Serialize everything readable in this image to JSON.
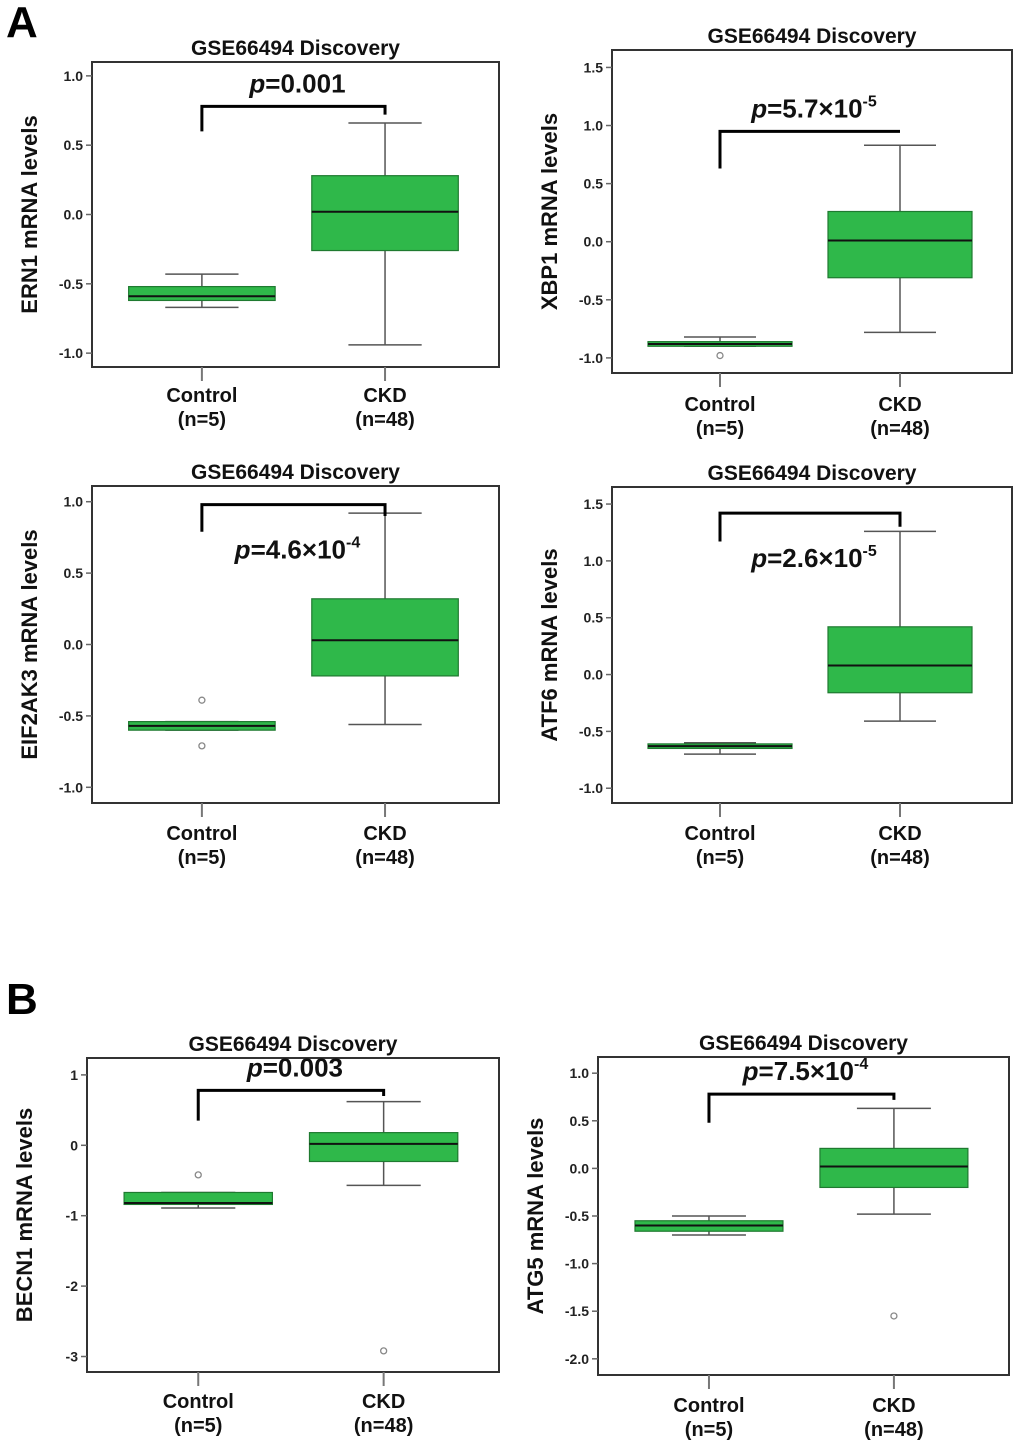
{
  "sections": [
    {
      "letter": "A"
    },
    {
      "letter": "B"
    }
  ],
  "colors": {
    "box_fill": "#2fb84a",
    "box_stroke": "#1f7a30",
    "whisker": "#555555",
    "frame": "#333333"
  },
  "chart_data": [
    {
      "type": "box",
      "section": "A",
      "title": "GSE66494 Discovery",
      "ylabel": "ERN1 mRNA levels",
      "ylim": [
        -1.1,
        1.1
      ],
      "yticks": [
        1.0,
        0.5,
        0.0,
        -0.5,
        -1.0
      ],
      "ytick_labels": [
        "1.0",
        "0.5",
        "0.0",
        "-0.5",
        "-1.0"
      ],
      "categories": [
        "Control",
        "CKD"
      ],
      "category_n": [
        "(n=5)",
        "(n=48)"
      ],
      "p_value": {
        "prefix": "p",
        "text": "=0.001",
        "base": "",
        "exp": ""
      },
      "bracket": {
        "left_y": 0.6,
        "top_y": 0.78,
        "right_y": 0.72,
        "label_pos": "above"
      },
      "boxes": [
        {
          "whisker_low": -0.67,
          "q1": -0.62,
          "median": -0.59,
          "q3": -0.52,
          "whisker_high": -0.43,
          "outliers": []
        },
        {
          "whisker_low": -0.94,
          "q1": -0.26,
          "median": 0.02,
          "q3": 0.28,
          "whisker_high": 0.66,
          "outliers": []
        }
      ]
    },
    {
      "type": "box",
      "section": "A",
      "title": "GSE66494 Discovery",
      "ylabel": "XBP1 mRNA levels",
      "ylim": [
        -1.13,
        1.65
      ],
      "yticks": [
        1.5,
        1.0,
        0.5,
        0.0,
        -0.5,
        -1.0
      ],
      "ytick_labels": [
        "1.5",
        "1.0",
        "0.5",
        "0.0",
        "-0.5",
        "-1.0"
      ],
      "categories": [
        "Control",
        "CKD"
      ],
      "category_n": [
        "(n=5)",
        "(n=48)"
      ],
      "p_value": {
        "prefix": "p",
        "text": "=5.7×10",
        "base": "",
        "exp": "-5"
      },
      "bracket": {
        "left_y": 0.63,
        "top_y": 0.95,
        "right_y": 0.95,
        "label_pos": "above"
      },
      "boxes": [
        {
          "whisker_low": -0.9,
          "q1": -0.9,
          "median": -0.88,
          "q3": -0.86,
          "whisker_high": -0.82,
          "outliers": [
            -0.98
          ]
        },
        {
          "whisker_low": -0.78,
          "q1": -0.31,
          "median": 0.01,
          "q3": 0.26,
          "whisker_high": 0.83,
          "outliers": []
        }
      ]
    },
    {
      "type": "box",
      "section": "A",
      "title": "GSE66494 Discovery",
      "ylabel": "EIF2AK3 mRNA levels",
      "ylim": [
        -1.11,
        1.11
      ],
      "yticks": [
        1.0,
        0.5,
        0.0,
        -0.5,
        -1.0
      ],
      "ytick_labels": [
        "1.0",
        "0.5",
        "0.0",
        "-0.5",
        "-1.0"
      ],
      "categories": [
        "Control",
        "CKD"
      ],
      "category_n": [
        "(n=5)",
        "(n=48)"
      ],
      "p_value": {
        "prefix": "p",
        "text": "=4.6×10",
        "base": "",
        "exp": "-4"
      },
      "bracket": {
        "left_y": 0.79,
        "top_y": 0.98,
        "right_y": 0.9,
        "label_pos": "below"
      },
      "boxes": [
        {
          "whisker_low": -0.6,
          "q1": -0.6,
          "median": -0.57,
          "q3": -0.54,
          "whisker_high": -0.54,
          "outliers": [
            -0.39,
            -0.71
          ]
        },
        {
          "whisker_low": -0.56,
          "q1": -0.22,
          "median": 0.03,
          "q3": 0.32,
          "whisker_high": 0.92,
          "outliers": []
        }
      ]
    },
    {
      "type": "box",
      "section": "A",
      "title": "GSE66494 Discovery",
      "ylabel": "ATF6 mRNA levels",
      "ylim": [
        -1.13,
        1.65
      ],
      "yticks": [
        1.5,
        1.0,
        0.5,
        0.0,
        -0.5,
        -1.0
      ],
      "ytick_labels": [
        "1.5",
        "1.0",
        "0.5",
        "0.0",
        "-0.5",
        "-1.0"
      ],
      "categories": [
        "Control",
        "CKD"
      ],
      "category_n": [
        "(n=5)",
        "(n=48)"
      ],
      "p_value": {
        "prefix": "p",
        "text": "=2.6×10",
        "base": "",
        "exp": "-5"
      },
      "bracket": {
        "left_y": 1.17,
        "top_y": 1.42,
        "right_y": 1.3,
        "label_pos": "below"
      },
      "boxes": [
        {
          "whisker_low": -0.7,
          "q1": -0.65,
          "median": -0.63,
          "q3": -0.61,
          "whisker_high": -0.6,
          "outliers": []
        },
        {
          "whisker_low": -0.41,
          "q1": -0.16,
          "median": 0.08,
          "q3": 0.42,
          "whisker_high": 1.26,
          "outliers": []
        }
      ]
    },
    {
      "type": "box",
      "section": "B",
      "title": "GSE66494 Discovery",
      "ylabel": "BECN1 mRNA levels",
      "ylim": [
        -3.22,
        1.24
      ],
      "yticks": [
        1,
        0,
        -1,
        -2,
        -3
      ],
      "ytick_labels": [
        "1",
        "0",
        "-1",
        "-2",
        "-3"
      ],
      "categories": [
        "Control",
        "CKD"
      ],
      "category_n": [
        "(n=5)",
        "(n=48)"
      ],
      "p_value": {
        "prefix": "p",
        "text": "=0.003",
        "base": "",
        "exp": ""
      },
      "bracket": {
        "left_y": 0.35,
        "top_y": 0.78,
        "right_y": 0.7,
        "label_pos": "above"
      },
      "boxes": [
        {
          "whisker_low": -0.89,
          "q1": -0.84,
          "median": -0.82,
          "q3": -0.67,
          "whisker_high": -0.67,
          "outliers": [
            -0.42
          ]
        },
        {
          "whisker_low": -0.57,
          "q1": -0.23,
          "median": 0.02,
          "q3": 0.18,
          "whisker_high": 0.62,
          "outliers": [
            -2.92
          ]
        }
      ]
    },
    {
      "type": "box",
      "section": "B",
      "title": "GSE66494 Discovery",
      "ylabel": "ATG5 mRNA levels",
      "ylim": [
        -2.17,
        1.17
      ],
      "yticks": [
        1.0,
        0.5,
        0.0,
        -0.5,
        -1.0,
        -1.5,
        -2.0
      ],
      "ytick_labels": [
        "1.0",
        "0.5",
        "0.0",
        "-0.5",
        "-1.0",
        "-1.5",
        "-2.0"
      ],
      "categories": [
        "Control",
        "CKD"
      ],
      "category_n": [
        "(n=5)",
        "(n=48)"
      ],
      "p_value": {
        "prefix": "p",
        "text": "=7.5×10",
        "base": "",
        "exp": "-4"
      },
      "bracket": {
        "left_y": 0.48,
        "top_y": 0.78,
        "right_y": 0.72,
        "label_pos": "above"
      },
      "boxes": [
        {
          "whisker_low": -0.7,
          "q1": -0.66,
          "median": -0.6,
          "q3": -0.55,
          "whisker_high": -0.5,
          "outliers": []
        },
        {
          "whisker_low": -0.48,
          "q1": -0.2,
          "median": 0.02,
          "q3": 0.21,
          "whisker_high": 0.63,
          "outliers": [
            -1.55
          ]
        }
      ]
    }
  ]
}
